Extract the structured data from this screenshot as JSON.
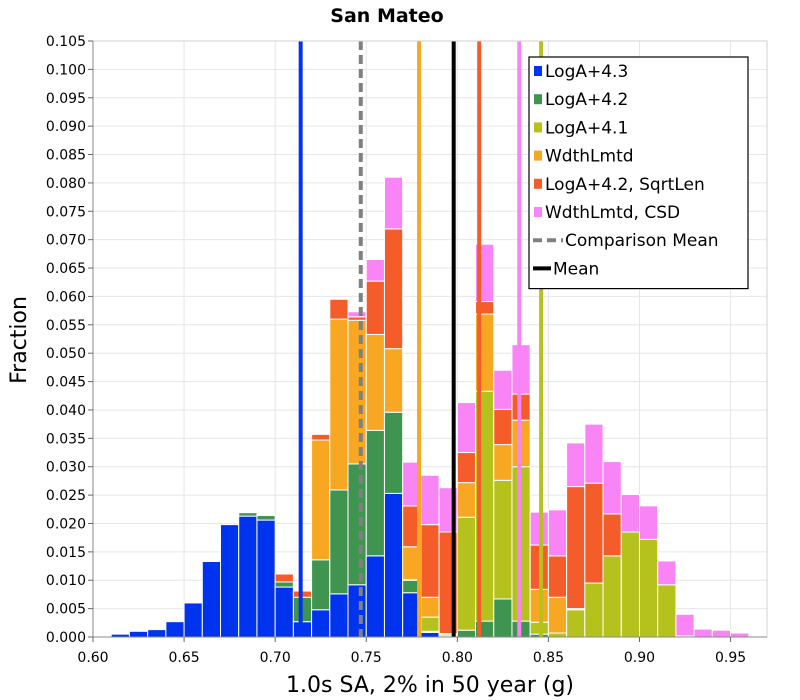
{
  "chart_data": {
    "type": "bar",
    "stacked": true,
    "title": "San Mateo",
    "xlabel": "1.0s SA, 2% in 50 year (g)",
    "ylabel": "Fraction",
    "xlim": [
      0.6,
      0.97
    ],
    "ylim": [
      0.0,
      0.105
    ],
    "grid": true,
    "bin_width": 0.01,
    "legend_position": "top-right",
    "x_ticks": [
      "0.60",
      "0.65",
      "0.70",
      "0.75",
      "0.80",
      "0.85",
      "0.90",
      "0.95"
    ],
    "y_ticks": [
      "0.000",
      "0.005",
      "0.010",
      "0.015",
      "0.020",
      "0.025",
      "0.030",
      "0.035",
      "0.040",
      "0.045",
      "0.050",
      "0.055",
      "0.060",
      "0.065",
      "0.070",
      "0.075",
      "0.080",
      "0.085",
      "0.090",
      "0.095",
      "0.100",
      "0.105"
    ],
    "bin_centers": [
      0.615,
      0.625,
      0.635,
      0.645,
      0.655,
      0.665,
      0.675,
      0.685,
      0.695,
      0.705,
      0.715,
      0.725,
      0.735,
      0.745,
      0.755,
      0.765,
      0.775,
      0.785,
      0.795,
      0.805,
      0.815,
      0.825,
      0.835,
      0.845,
      0.855,
      0.865,
      0.875,
      0.885,
      0.895,
      0.905,
      0.915,
      0.925,
      0.935,
      0.945,
      0.955
    ],
    "series": [
      {
        "name": "LogA+4.3",
        "color": "#0033ee",
        "values": [
          0.0005,
          0.001,
          0.0013,
          0.0027,
          0.006,
          0.0133,
          0.0198,
          0.0213,
          0.0206,
          0.0088,
          0.0027,
          0.0048,
          0.0076,
          0.0092,
          0.0143,
          0.0253,
          0.0078,
          0.0008,
          0,
          0,
          0,
          0,
          0,
          0,
          0,
          0,
          0,
          0,
          0,
          0,
          0,
          0,
          0,
          0,
          0
        ]
      },
      {
        "name": "LogA+4.2",
        "color": "#3f944f",
        "values": [
          0,
          0,
          0,
          0,
          0,
          0,
          0,
          0.0006,
          0.0008,
          0.0009,
          0.0043,
          0.0088,
          0.0183,
          0.0213,
          0.0221,
          0.0143,
          0.0022,
          0.0002,
          0.0002,
          0.0012,
          0.0028,
          0.0067,
          0.0028,
          0.0005,
          0,
          0,
          0,
          0,
          0,
          0,
          0,
          0,
          0,
          0,
          0
        ]
      },
      {
        "name": "LogA+4.1",
        "color": "#b5c21e",
        "values": [
          0,
          0,
          0,
          0,
          0,
          0,
          0,
          0,
          0,
          0,
          0,
          0,
          0,
          0,
          0,
          0,
          0.0001,
          0.0025,
          0.0003,
          0.0199,
          0.0405,
          0.0209,
          0.0272,
          0.0021,
          0.0007,
          0.0048,
          0.0095,
          0.0143,
          0.0185,
          0.0172,
          0.0092,
          0.0002,
          0,
          0,
          0
        ]
      },
      {
        "name": "WdthLmtd",
        "color": "#f8a723",
        "values": [
          0,
          0,
          0,
          0,
          0,
          0,
          0,
          0,
          0,
          0,
          0,
          0.0211,
          0.0301,
          0.0253,
          0.0169,
          0.0112,
          0.0058,
          0.0035,
          0.0001,
          0.0061,
          0.0136,
          0.0063,
          0.0082,
          0.0058,
          0.0063,
          0.0002,
          0,
          0,
          0,
          0,
          0,
          0,
          0,
          0,
          0
        ]
      },
      {
        "name": "LogA+4.2, SqrtLen",
        "color": "#f45d2a",
        "values": [
          0,
          0,
          0,
          0,
          0,
          0,
          0,
          0,
          0,
          0.0014,
          0.0011,
          0.001,
          0.0035,
          0.0006,
          0.0094,
          0.0211,
          0.0072,
          0.0128,
          0.0179,
          0.0053,
          0.0022,
          0.0062,
          0.0046,
          0.0078,
          0.0073,
          0.0215,
          0.0176,
          0.0074,
          0,
          0,
          0,
          0,
          0,
          0,
          0
        ]
      },
      {
        "name": "WdthLmtd, CSD",
        "color": "#f984f5",
        "values": [
          0,
          0,
          0,
          0,
          0,
          0,
          0,
          0,
          0,
          0,
          0,
          0,
          0,
          0.0009,
          0.0038,
          0.0091,
          0.0077,
          0.0087,
          0.0078,
          0.0088,
          0.0101,
          0.0069,
          0.0087,
          0.0058,
          0.0081,
          0.0077,
          0.0104,
          0.0092,
          0.0066,
          0.0059,
          0.0042,
          0.0038,
          0.0014,
          0.0012,
          0.0007
        ]
      }
    ],
    "vertical_lines": [
      {
        "name": "LogA+4.3",
        "x": 0.714,
        "color": "#0033ee",
        "style": "solid"
      },
      {
        "name": "Comparison Mean",
        "x": 0.747,
        "color": "#808080",
        "style": "dashed"
      },
      {
        "name": "WdthLmtd",
        "x": 0.779,
        "color": "#f8a723",
        "style": "solid"
      },
      {
        "name": "Mean",
        "x": 0.798,
        "color": "#000000",
        "style": "solid"
      },
      {
        "name": "LogA+4.2, SqrtLen",
        "x": 0.812,
        "color": "#f45d2a",
        "style": "solid"
      },
      {
        "name": "WdthLmtd, CSD",
        "x": 0.834,
        "color": "#f984f5",
        "style": "solid"
      },
      {
        "name": "LogA+4.1",
        "x": 0.846,
        "color": "#b5c21e",
        "style": "solid"
      }
    ],
    "legend": [
      {
        "label": "LogA+4.3",
        "color": "#0033ee",
        "kind": "box"
      },
      {
        "label": "LogA+4.2",
        "color": "#3f944f",
        "kind": "box"
      },
      {
        "label": "LogA+4.1",
        "color": "#b5c21e",
        "kind": "box"
      },
      {
        "label": "WdthLmtd",
        "color": "#f8a723",
        "kind": "box"
      },
      {
        "label": "LogA+4.2, SqrtLen",
        "color": "#f45d2a",
        "kind": "box"
      },
      {
        "label": "WdthLmtd, CSD",
        "color": "#f984f5",
        "kind": "box"
      },
      {
        "label": "Comparison Mean",
        "color": "#808080",
        "kind": "dashed"
      },
      {
        "label": "Mean",
        "color": "#000000",
        "kind": "line"
      }
    ]
  }
}
